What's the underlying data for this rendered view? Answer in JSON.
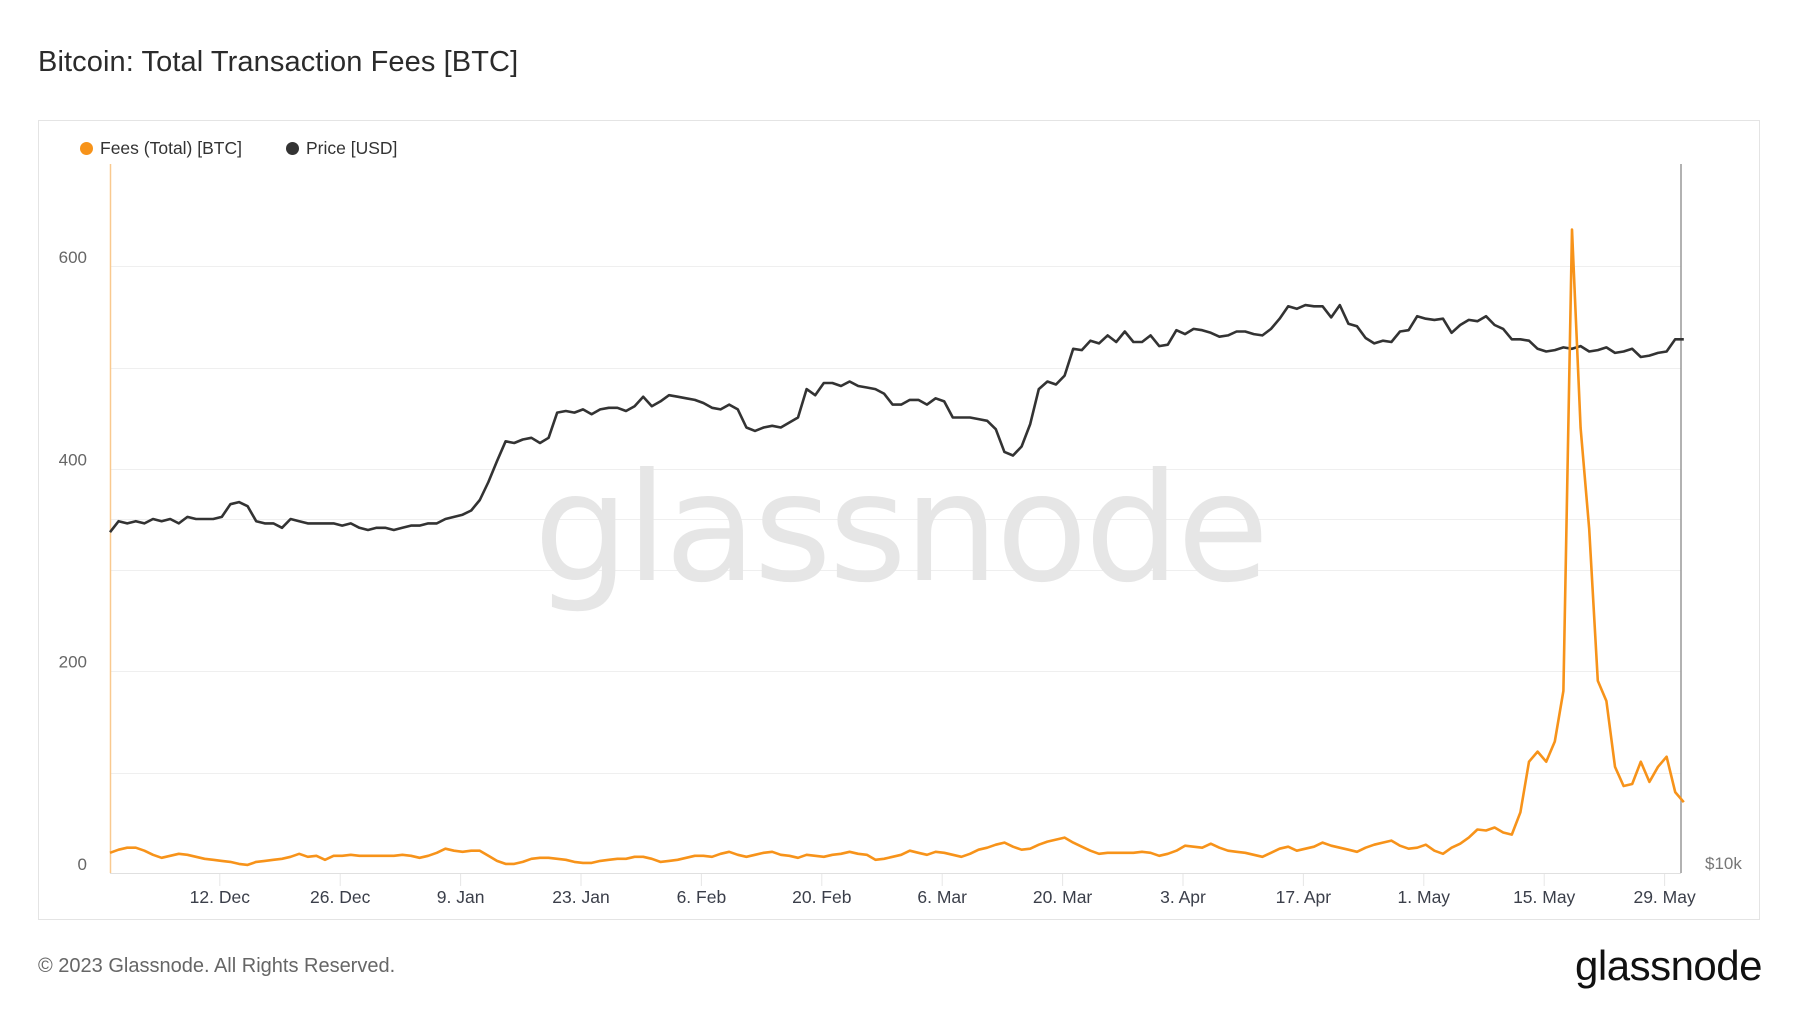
{
  "header": {
    "title": "Bitcoin: Total Transaction Fees [BTC]"
  },
  "legend": [
    {
      "label": "Fees (Total) [BTC]",
      "color": "#f7931a"
    },
    {
      "label": "Price [USD]",
      "color": "#333333"
    }
  ],
  "axes": {
    "left_ticks": [
      "0",
      "200",
      "400",
      "600"
    ],
    "right_label": "$10k",
    "x_ticks": [
      "12. Dec",
      "26. Dec",
      "9. Jan",
      "23. Jan",
      "6. Feb",
      "20. Feb",
      "6. Mar",
      "20. Mar",
      "3. Apr",
      "17. Apr",
      "1. May",
      "15. May",
      "29. May"
    ]
  },
  "watermark": "glassnode",
  "footer": {
    "copyright": "© 2023 Glassnode. All Rights Reserved.",
    "logo": "glassnode"
  },
  "colors": {
    "fees": "#f7931a",
    "price": "#333333",
    "grid": "#efefef",
    "watermark": "#e6e6e6"
  },
  "chart_data": {
    "type": "line",
    "title": "Bitcoin: Total Transaction Fees [BTC]",
    "xlabel": "",
    "ylabel": "Fees (Total) [BTC]",
    "y2label": "Price [USD] (log scale)",
    "ylim": [
      0,
      700
    ],
    "x_start": "29. Nov 2022",
    "x_end": "30. May 2023",
    "x_step": "1 day",
    "x_tick_labels": [
      "12. Dec",
      "26. Dec",
      "9. Jan",
      "23. Jan",
      "6. Feb",
      "20. Feb",
      "6. Mar",
      "20. Mar",
      "3. Apr",
      "17. Apr",
      "1. May",
      "15. May",
      "29. May"
    ],
    "y_tick_labels": [
      "0",
      "200",
      "400",
      "600"
    ],
    "y2_tick_labels": [
      "$10k"
    ],
    "grid": true,
    "legend_position": "top-left",
    "series": [
      {
        "name": "Fees (Total) [BTC]",
        "axis": "left",
        "color": "#f7931a",
        "values": [
          20,
          23,
          25,
          25,
          22,
          18,
          15,
          17,
          19,
          18,
          16,
          14,
          13,
          12,
          11,
          9,
          8,
          11,
          12,
          13,
          14,
          16,
          19,
          16,
          17,
          13,
          17,
          17,
          18,
          17,
          17,
          17,
          17,
          17,
          18,
          17,
          15,
          17,
          20,
          24,
          22,
          21,
          22,
          22,
          17,
          12,
          9,
          9,
          11,
          14,
          15,
          15,
          14,
          13,
          11,
          10,
          10,
          12,
          13,
          14,
          14,
          16,
          16,
          14,
          11,
          12,
          13,
          15,
          17,
          17,
          16,
          19,
          21,
          18,
          16,
          18,
          20,
          21,
          18,
          17,
          15,
          18,
          17,
          16,
          18,
          19,
          21,
          19,
          18,
          13,
          14,
          16,
          18,
          22,
          20,
          18,
          21,
          20,
          18,
          16,
          19,
          23,
          25,
          28,
          30,
          26,
          23,
          24,
          28,
          31,
          33,
          35,
          30,
          26,
          22,
          19,
          20,
          20,
          20,
          20,
          21,
          20,
          17,
          19,
          22,
          27,
          26,
          25,
          29,
          25,
          22,
          21,
          20,
          18,
          16,
          20,
          24,
          26,
          22,
          24,
          26,
          30,
          27,
          25,
          23,
          21,
          25,
          28,
          30,
          32,
          27,
          24,
          25,
          28,
          22,
          19,
          25,
          29,
          35,
          43,
          42,
          45,
          40,
          38,
          60,
          110,
          120,
          110,
          130,
          180,
          636,
          440,
          340,
          190,
          170,
          105,
          86,
          88,
          110,
          90,
          105,
          115,
          80,
          70
        ]
      },
      {
        "name": "Price [USD]",
        "axis": "right",
        "scale": "log",
        "color": "#333333",
        "values": [
          16400,
          16900,
          16800,
          16900,
          16800,
          17000,
          16900,
          17000,
          16800,
          17100,
          17000,
          17000,
          17000,
          17100,
          17700,
          17800,
          17600,
          16900,
          16800,
          16800,
          16600,
          17000,
          16900,
          16800,
          16800,
          16800,
          16800,
          16700,
          16800,
          16600,
          16500,
          16600,
          16600,
          16500,
          16600,
          16700,
          16700,
          16800,
          16800,
          17000,
          17100,
          17200,
          17400,
          17900,
          18800,
          19900,
          21000,
          20900,
          21100,
          21200,
          20900,
          21200,
          22700,
          22800,
          22700,
          22900,
          22600,
          22900,
          23000,
          23000,
          22800,
          23100,
          23700,
          23100,
          23400,
          23800,
          23700,
          23600,
          23500,
          23300,
          23000,
          22900,
          23200,
          22900,
          21800,
          21600,
          21800,
          21900,
          21800,
          22100,
          22400,
          24200,
          23800,
          24600,
          24600,
          24400,
          24700,
          24400,
          24300,
          24200,
          23900,
          23200,
          23200,
          23500,
          23500,
          23200,
          23600,
          23400,
          22400,
          22400,
          22400,
          22300,
          22200,
          21700,
          20400,
          20200,
          20700,
          22000,
          24200,
          24700,
          24500,
          25100,
          27000,
          26900,
          27600,
          27400,
          28000,
          27500,
          28300,
          27500,
          27500,
          28000,
          27200,
          27300,
          28400,
          28100,
          28500,
          28400,
          28200,
          27900,
          28000,
          28300,
          28300,
          28100,
          28000,
          28500,
          29300,
          30300,
          30100,
          30400,
          30300,
          30300,
          29400,
          30400,
          28900,
          28700,
          27800,
          27400,
          27600,
          27500,
          28300,
          28400,
          29500,
          29300,
          29200,
          29300,
          28200,
          28800,
          29200,
          29100,
          29500,
          28800,
          28500,
          27700,
          27700,
          27600,
          27000,
          26800,
          26900,
          27100,
          27000,
          27200,
          26800,
          26900,
          27100,
          26700,
          26800,
          27000,
          26400,
          26500,
          26700,
          26800,
          27700,
          27700
        ]
      }
    ]
  }
}
